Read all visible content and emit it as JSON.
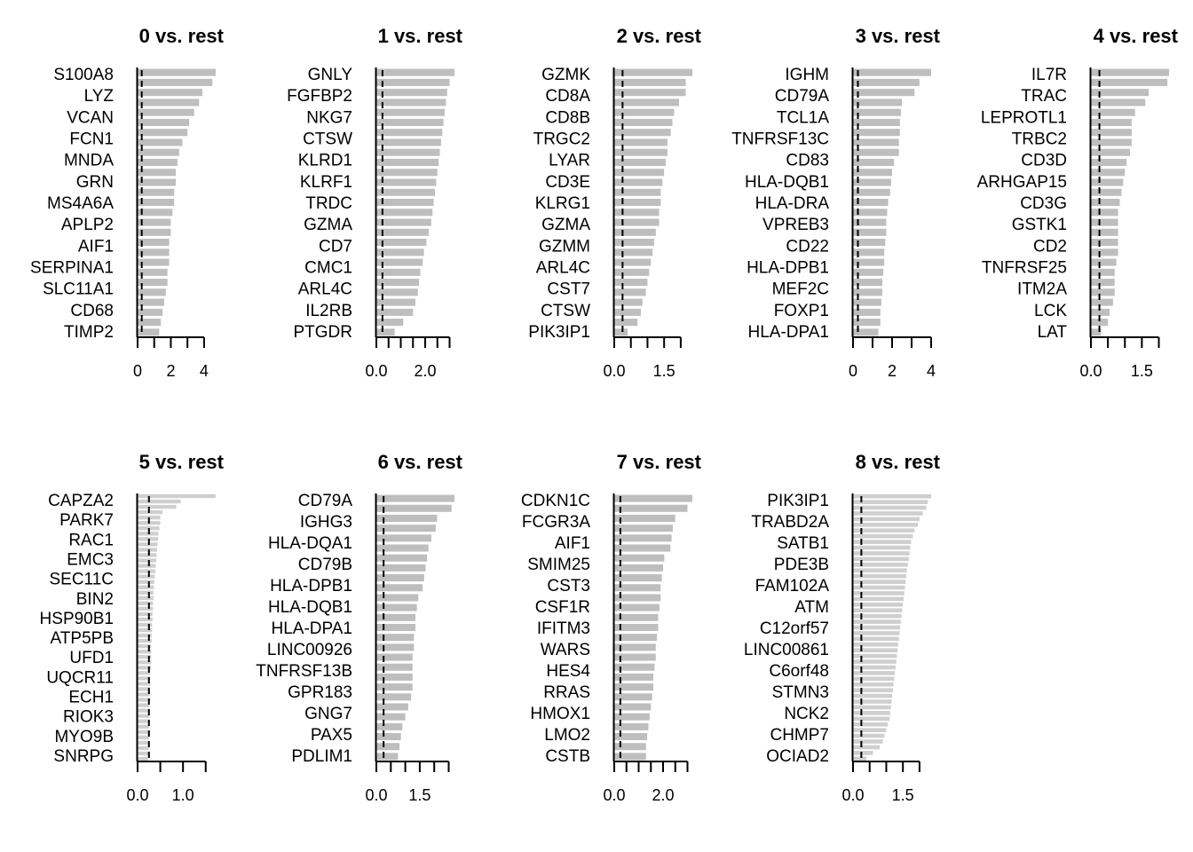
{
  "chart_data": [
    {
      "type": "bar",
      "orientation": "horizontal",
      "title": "0 vs. rest",
      "genes": [
        "S100A8",
        "LYZ",
        "VCAN",
        "FCN1",
        "MNDA",
        "GRN",
        "MS4A6A",
        "APLP2",
        "AIF1",
        "SERPINA1",
        "SLC11A1",
        "CD68",
        "TIMP2"
      ],
      "values": [
        4.7,
        4.5,
        3.9,
        3.7,
        3.4,
        3.1,
        3.0,
        2.7,
        2.5,
        2.4,
        2.3,
        2.3,
        2.2,
        2.2,
        2.1,
        2.0,
        2.0,
        1.9,
        1.9,
        1.9,
        1.8,
        1.8,
        1.7,
        1.6,
        1.5,
        1.4,
        1.3
      ],
      "threshold": 0.25,
      "xlim": [
        0,
        4.7
      ],
      "ticks": [
        0,
        1,
        2,
        3,
        4
      ],
      "tick_labels": [
        "0",
        "2",
        "4"
      ]
    },
    {
      "type": "bar",
      "orientation": "horizontal",
      "title": "1 vs. rest",
      "genes": [
        "GNLY",
        "FGFBP2",
        "NKG7",
        "CTSW",
        "KLRD1",
        "KLRF1",
        "TRDC",
        "GZMA",
        "CD7",
        "CMC1",
        "ARL4C",
        "IL2RB",
        "PTGDR"
      ],
      "values": [
        3.2,
        3.0,
        2.9,
        2.85,
        2.8,
        2.75,
        2.7,
        2.65,
        2.6,
        2.55,
        2.5,
        2.45,
        2.4,
        2.35,
        2.3,
        2.25,
        2.15,
        2.05,
        1.95,
        1.9,
        1.8,
        1.75,
        1.7,
        1.6,
        1.5,
        1.1,
        0.75
      ],
      "threshold": 0.25,
      "xlim": [
        0,
        3.2
      ],
      "ticks": [
        0,
        0.5,
        1,
        1.5,
        2,
        2.5,
        3
      ],
      "tick_labels": [
        "0.0",
        "2.0"
      ]
    },
    {
      "type": "bar",
      "orientation": "horizontal",
      "title": "2 vs. rest",
      "genes": [
        "GZMK",
        "CD8A",
        "CD8B",
        "TRGC2",
        "LYAR",
        "CD3E",
        "KLRG1",
        "GZMA",
        "GZMM",
        "ARL4C",
        "CST7",
        "CTSW",
        "PIK3IP1"
      ],
      "values": [
        2.35,
        2.15,
        2.15,
        1.95,
        1.8,
        1.75,
        1.7,
        1.6,
        1.6,
        1.55,
        1.5,
        1.45,
        1.4,
        1.4,
        1.35,
        1.35,
        1.25,
        1.2,
        1.15,
        1.1,
        1.05,
        1.0,
        0.95,
        0.85,
        0.8,
        0.7,
        0.4
      ],
      "threshold": 0.25,
      "xlim": [
        0,
        2.35
      ],
      "ticks": [
        0,
        0.5,
        1,
        1.5,
        2
      ],
      "tick_labels": [
        "0.0",
        "1.5"
      ]
    },
    {
      "type": "bar",
      "orientation": "horizontal",
      "title": "3 vs. rest",
      "genes": [
        "IGHM",
        "CD79A",
        "TCL1A",
        "TNFRSF13C",
        "CD83",
        "HLA-DQB1",
        "HLA-DRA",
        "VPREB3",
        "CD22",
        "HLA-DPB1",
        "MEF2C",
        "FOXP1",
        "HLA-DPA1"
      ],
      "values": [
        4.0,
        3.4,
        3.15,
        2.5,
        2.45,
        2.4,
        2.4,
        2.35,
        2.35,
        2.1,
        2.0,
        1.95,
        1.9,
        1.8,
        1.75,
        1.7,
        1.7,
        1.65,
        1.6,
        1.6,
        1.55,
        1.5,
        1.5,
        1.45,
        1.4,
        1.4,
        1.3
      ],
      "threshold": 0.25,
      "xlim": [
        0,
        4.0
      ],
      "ticks": [
        0,
        1,
        2,
        3,
        4
      ],
      "tick_labels": [
        "0",
        "2",
        "4"
      ]
    },
    {
      "type": "bar",
      "orientation": "horizontal",
      "title": "4 vs. rest",
      "genes": [
        "IL7R",
        "TRAC",
        "LEPROTL1",
        "TRBC2",
        "CD3D",
        "ARHGAP15",
        "CD3G",
        "GSTK1",
        "CD2",
        "TNFRSF25",
        "ITM2A",
        "LCK",
        "LAT"
      ],
      "values": [
        2.3,
        2.25,
        1.7,
        1.6,
        1.3,
        1.2,
        1.2,
        1.2,
        1.15,
        1.05,
        1.0,
        0.95,
        0.9,
        0.85,
        0.8,
        0.8,
        0.8,
        0.8,
        0.8,
        0.75,
        0.7,
        0.7,
        0.7,
        0.65,
        0.55,
        0.5,
        0.3
      ],
      "threshold": 0.25,
      "xlim": [
        0,
        2.3
      ],
      "ticks": [
        0,
        0.5,
        1,
        1.5,
        2
      ],
      "tick_labels": [
        "0.0",
        "1.5"
      ]
    },
    {
      "type": "bar",
      "orientation": "horizontal",
      "title": "5 vs. rest",
      "genes": [
        "CAPZA2",
        "PARK7",
        "RAC1",
        "EMC3",
        "SEC11C",
        "BIN2",
        "HSP90B1",
        "ATP5PB",
        "UFD1",
        "UQCR11",
        "ECH1",
        "RIOK3",
        "MYO9B",
        "SNRPG"
      ],
      "values": [
        1.72,
        0.95,
        0.85,
        0.55,
        0.5,
        0.5,
        0.48,
        0.46,
        0.45,
        0.44,
        0.43,
        0.42,
        0.41,
        0.4,
        0.39,
        0.38,
        0.37,
        0.36,
        0.35,
        0.35,
        0.34,
        0.34,
        0.33,
        0.33,
        0.32,
        0.32,
        0.31,
        0.31,
        0.3,
        0.3,
        0.3,
        0.29,
        0.29,
        0.28,
        0.28,
        0.28,
        0.27,
        0.27,
        0.27,
        0.26,
        0.26,
        0.26,
        0.25,
        0.25,
        0.25,
        0.25,
        0.24,
        0.24,
        0.24,
        0.23
      ],
      "threshold": 0.25,
      "xlim": [
        0,
        1.72
      ],
      "ticks": [
        0,
        0.5,
        1,
        1.5
      ],
      "tick_labels": [
        "0.0",
        "1.0"
      ]
    },
    {
      "type": "bar",
      "orientation": "horizontal",
      "title": "6 vs. rest",
      "genes": [
        "CD79A",
        "IGHG3",
        "HLA-DQA1",
        "CD79B",
        "HLA-DPB1",
        "HLA-DQB1",
        "HLA-DPA1",
        "LINC00926",
        "TNFRSF13B",
        "GPR183",
        "GNG7",
        "PAX5",
        "PDLIM1"
      ],
      "values": [
        2.7,
        2.6,
        2.1,
        2.05,
        1.9,
        1.8,
        1.75,
        1.7,
        1.65,
        1.6,
        1.45,
        1.4,
        1.35,
        1.35,
        1.3,
        1.3,
        1.25,
        1.25,
        1.25,
        1.25,
        1.2,
        1.1,
        1.0,
        0.9,
        0.85,
        0.8,
        0.75
      ],
      "threshold": 0.25,
      "xlim": [
        0,
        2.7
      ],
      "ticks": [
        0,
        0.5,
        1,
        1.5,
        2,
        2.5
      ],
      "tick_labels": [
        "0.0",
        "1.5"
      ]
    },
    {
      "type": "bar",
      "orientation": "horizontal",
      "title": "7 vs. rest",
      "genes": [
        "CDKN1C",
        "FCGR3A",
        "AIF1",
        "SMIM25",
        "CST3",
        "CSF1R",
        "IFITM3",
        "WARS",
        "HES4",
        "RRAS",
        "HMOX1",
        "LMO2",
        "CSTB"
      ],
      "values": [
        3.2,
        3.0,
        2.5,
        2.4,
        2.35,
        2.3,
        2.05,
        2.0,
        1.95,
        1.9,
        1.9,
        1.85,
        1.8,
        1.8,
        1.75,
        1.7,
        1.7,
        1.65,
        1.6,
        1.6,
        1.55,
        1.5,
        1.45,
        1.4,
        1.35,
        1.3,
        1.3
      ],
      "threshold": 0.25,
      "xlim": [
        0,
        3.2
      ],
      "ticks": [
        0,
        0.5,
        1,
        1.5,
        2,
        2.5,
        3
      ],
      "tick_labels": [
        "0.0",
        "2.0"
      ]
    },
    {
      "type": "bar",
      "orientation": "horizontal",
      "title": "8 vs. rest",
      "genes": [
        "PIK3IP1",
        "TRABD2A",
        "SATB1",
        "PDE3B",
        "FAM102A",
        "ATM",
        "C12orf57",
        "LINC00861",
        "C6orf48",
        "STMN3",
        "NCK2",
        "CHMP7",
        "OCIAD2"
      ],
      "values": [
        2.35,
        2.25,
        2.2,
        2.1,
        2.0,
        1.95,
        1.85,
        1.8,
        1.75,
        1.72,
        1.7,
        1.68,
        1.65,
        1.62,
        1.6,
        1.58,
        1.56,
        1.54,
        1.52,
        1.5,
        1.48,
        1.46,
        1.44,
        1.42,
        1.4,
        1.38,
        1.36,
        1.34,
        1.32,
        1.3,
        1.28,
        1.26,
        1.24,
        1.22,
        1.2,
        1.18,
        1.16,
        1.14,
        1.12,
        1.1,
        1.05,
        1.0,
        0.95,
        0.9,
        0.8,
        0.6,
        0.4
      ],
      "threshold": 0.25,
      "xlim": [
        0,
        2.35
      ],
      "ticks": [
        0,
        0.5,
        1,
        1.5,
        2
      ],
      "tick_labels": [
        "0.0",
        "1.5"
      ]
    }
  ]
}
